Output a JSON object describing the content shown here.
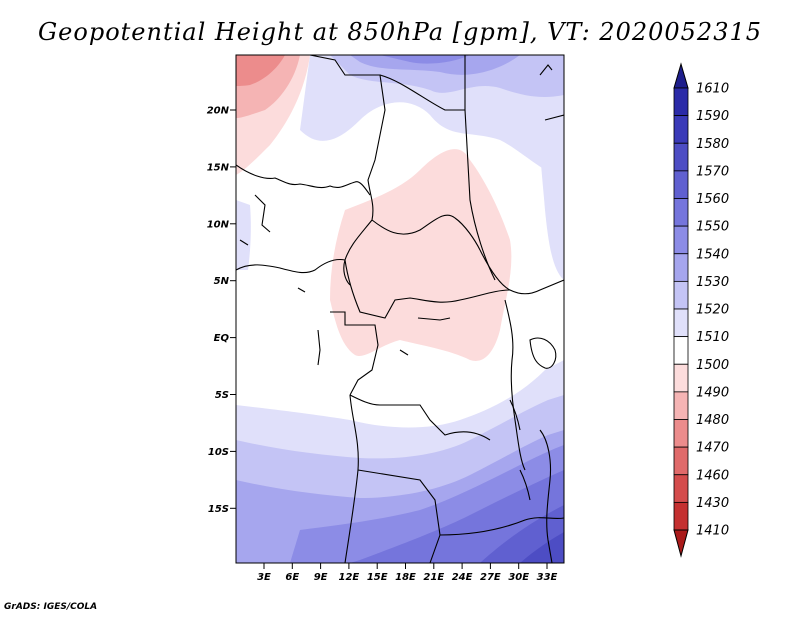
{
  "title": "Geopotential Height at 850hPa [gpm], VT: 2020052315",
  "credit": "GrADS: IGES/COLA",
  "map": {
    "lat_ticks": [
      "20N",
      "15N",
      "10N",
      "5N",
      "EQ",
      "5S",
      "10S",
      "15S"
    ],
    "lon_ticks": [
      "3E",
      "6E",
      "9E",
      "12E",
      "15E",
      "18E",
      "21E",
      "24E",
      "27E",
      "30E",
      "33E"
    ]
  },
  "colorbar": {
    "labels": [
      "1610",
      "1590",
      "1580",
      "1570",
      "1560",
      "1550",
      "1540",
      "1530",
      "1520",
      "1510",
      "1500",
      "1490",
      "1480",
      "1470",
      "1460",
      "1430",
      "1410"
    ],
    "colors": [
      "#1e1e8c",
      "#2b2ba8",
      "#3a3ab8",
      "#4d4dc4",
      "#6060d0",
      "#7575dc",
      "#8c8ce6",
      "#a6a6ee",
      "#c4c4f5",
      "#e0e0fa",
      "#ffffff",
      "#fcdcdc",
      "#f5b4b4",
      "#ec8c8c",
      "#e06a6a",
      "#d44c4c",
      "#c43030",
      "#aa1a1a"
    ]
  }
}
